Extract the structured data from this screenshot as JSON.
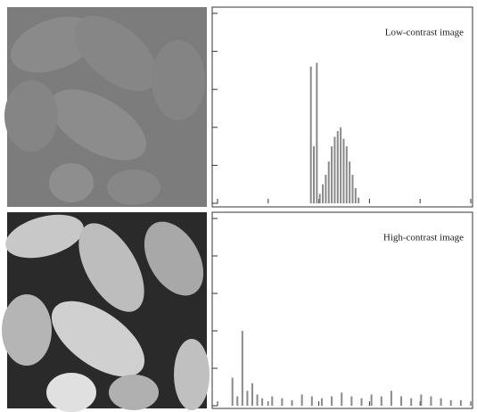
{
  "chart_data": [
    {
      "type": "histogram",
      "title": "Low-contrast image",
      "color": "#8a8a8a",
      "x": [
        94,
        97,
        100,
        103,
        106,
        109,
        112,
        115,
        118,
        121,
        124,
        127,
        130,
        133,
        136,
        139,
        142
      ],
      "values": [
        0.72,
        0.3,
        0.74,
        0.05,
        0.1,
        0.15,
        0.22,
        0.3,
        0.35,
        0.38,
        0.4,
        0.34,
        0.3,
        0.22,
        0.15,
        0.08,
        0.03
      ],
      "xlim": [
        0,
        255
      ],
      "ylim": [
        0,
        1
      ]
    },
    {
      "type": "histogram",
      "title": "High-contrast image",
      "color": "#8a8a8a",
      "x": [
        15,
        20,
        25,
        30,
        35,
        40,
        45,
        55,
        65,
        75,
        85,
        95,
        105,
        115,
        125,
        135,
        145,
        155,
        165,
        175,
        185,
        195,
        205,
        215,
        225,
        235,
        245
      ],
      "values": [
        0.15,
        0.05,
        0.4,
        0.08,
        0.12,
        0.06,
        0.04,
        0.05,
        0.04,
        0.03,
        0.06,
        0.05,
        0.04,
        0.05,
        0.07,
        0.05,
        0.04,
        0.06,
        0.05,
        0.08,
        0.05,
        0.04,
        0.06,
        0.05,
        0.04,
        0.03,
        0.03
      ],
      "xlim": [
        0,
        255
      ],
      "ylim": [
        0,
        1
      ]
    }
  ]
}
